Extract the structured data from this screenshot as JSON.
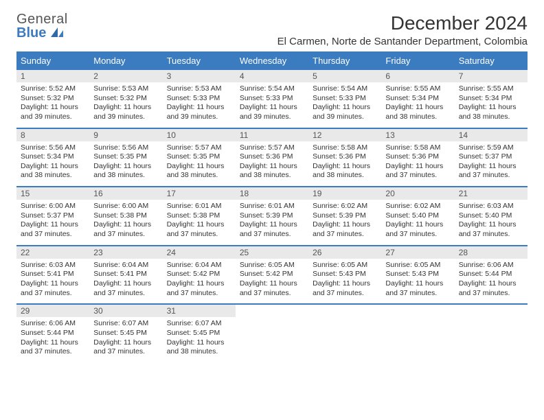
{
  "logo": {
    "word1": "General",
    "word2": "Blue"
  },
  "title": "December 2024",
  "location": "El Carmen, Norte de Santander Department, Colombia",
  "colors": {
    "header_bg": "#3b7bbf",
    "header_text": "#ffffff",
    "daynum_bg": "#e9e9e9",
    "border": "#3b7bbf",
    "body_text": "#333333",
    "logo_gray": "#555555",
    "logo_blue": "#3b7bbf"
  },
  "weekdays": [
    "Sunday",
    "Monday",
    "Tuesday",
    "Wednesday",
    "Thursday",
    "Friday",
    "Saturday"
  ],
  "weeks": [
    [
      {
        "n": "1",
        "sr": "Sunrise: 5:52 AM",
        "ss": "Sunset: 5:32 PM",
        "dl": "Daylight: 11 hours and 39 minutes."
      },
      {
        "n": "2",
        "sr": "Sunrise: 5:53 AM",
        "ss": "Sunset: 5:32 PM",
        "dl": "Daylight: 11 hours and 39 minutes."
      },
      {
        "n": "3",
        "sr": "Sunrise: 5:53 AM",
        "ss": "Sunset: 5:33 PM",
        "dl": "Daylight: 11 hours and 39 minutes."
      },
      {
        "n": "4",
        "sr": "Sunrise: 5:54 AM",
        "ss": "Sunset: 5:33 PM",
        "dl": "Daylight: 11 hours and 39 minutes."
      },
      {
        "n": "5",
        "sr": "Sunrise: 5:54 AM",
        "ss": "Sunset: 5:33 PM",
        "dl": "Daylight: 11 hours and 39 minutes."
      },
      {
        "n": "6",
        "sr": "Sunrise: 5:55 AM",
        "ss": "Sunset: 5:34 PM",
        "dl": "Daylight: 11 hours and 38 minutes."
      },
      {
        "n": "7",
        "sr": "Sunrise: 5:55 AM",
        "ss": "Sunset: 5:34 PM",
        "dl": "Daylight: 11 hours and 38 minutes."
      }
    ],
    [
      {
        "n": "8",
        "sr": "Sunrise: 5:56 AM",
        "ss": "Sunset: 5:34 PM",
        "dl": "Daylight: 11 hours and 38 minutes."
      },
      {
        "n": "9",
        "sr": "Sunrise: 5:56 AM",
        "ss": "Sunset: 5:35 PM",
        "dl": "Daylight: 11 hours and 38 minutes."
      },
      {
        "n": "10",
        "sr": "Sunrise: 5:57 AM",
        "ss": "Sunset: 5:35 PM",
        "dl": "Daylight: 11 hours and 38 minutes."
      },
      {
        "n": "11",
        "sr": "Sunrise: 5:57 AM",
        "ss": "Sunset: 5:36 PM",
        "dl": "Daylight: 11 hours and 38 minutes."
      },
      {
        "n": "12",
        "sr": "Sunrise: 5:58 AM",
        "ss": "Sunset: 5:36 PM",
        "dl": "Daylight: 11 hours and 38 minutes."
      },
      {
        "n": "13",
        "sr": "Sunrise: 5:58 AM",
        "ss": "Sunset: 5:36 PM",
        "dl": "Daylight: 11 hours and 37 minutes."
      },
      {
        "n": "14",
        "sr": "Sunrise: 5:59 AM",
        "ss": "Sunset: 5:37 PM",
        "dl": "Daylight: 11 hours and 37 minutes."
      }
    ],
    [
      {
        "n": "15",
        "sr": "Sunrise: 6:00 AM",
        "ss": "Sunset: 5:37 PM",
        "dl": "Daylight: 11 hours and 37 minutes."
      },
      {
        "n": "16",
        "sr": "Sunrise: 6:00 AM",
        "ss": "Sunset: 5:38 PM",
        "dl": "Daylight: 11 hours and 37 minutes."
      },
      {
        "n": "17",
        "sr": "Sunrise: 6:01 AM",
        "ss": "Sunset: 5:38 PM",
        "dl": "Daylight: 11 hours and 37 minutes."
      },
      {
        "n": "18",
        "sr": "Sunrise: 6:01 AM",
        "ss": "Sunset: 5:39 PM",
        "dl": "Daylight: 11 hours and 37 minutes."
      },
      {
        "n": "19",
        "sr": "Sunrise: 6:02 AM",
        "ss": "Sunset: 5:39 PM",
        "dl": "Daylight: 11 hours and 37 minutes."
      },
      {
        "n": "20",
        "sr": "Sunrise: 6:02 AM",
        "ss": "Sunset: 5:40 PM",
        "dl": "Daylight: 11 hours and 37 minutes."
      },
      {
        "n": "21",
        "sr": "Sunrise: 6:03 AM",
        "ss": "Sunset: 5:40 PM",
        "dl": "Daylight: 11 hours and 37 minutes."
      }
    ],
    [
      {
        "n": "22",
        "sr": "Sunrise: 6:03 AM",
        "ss": "Sunset: 5:41 PM",
        "dl": "Daylight: 11 hours and 37 minutes."
      },
      {
        "n": "23",
        "sr": "Sunrise: 6:04 AM",
        "ss": "Sunset: 5:41 PM",
        "dl": "Daylight: 11 hours and 37 minutes."
      },
      {
        "n": "24",
        "sr": "Sunrise: 6:04 AM",
        "ss": "Sunset: 5:42 PM",
        "dl": "Daylight: 11 hours and 37 minutes."
      },
      {
        "n": "25",
        "sr": "Sunrise: 6:05 AM",
        "ss": "Sunset: 5:42 PM",
        "dl": "Daylight: 11 hours and 37 minutes."
      },
      {
        "n": "26",
        "sr": "Sunrise: 6:05 AM",
        "ss": "Sunset: 5:43 PM",
        "dl": "Daylight: 11 hours and 37 minutes."
      },
      {
        "n": "27",
        "sr": "Sunrise: 6:05 AM",
        "ss": "Sunset: 5:43 PM",
        "dl": "Daylight: 11 hours and 37 minutes."
      },
      {
        "n": "28",
        "sr": "Sunrise: 6:06 AM",
        "ss": "Sunset: 5:44 PM",
        "dl": "Daylight: 11 hours and 37 minutes."
      }
    ],
    [
      {
        "n": "29",
        "sr": "Sunrise: 6:06 AM",
        "ss": "Sunset: 5:44 PM",
        "dl": "Daylight: 11 hours and 37 minutes."
      },
      {
        "n": "30",
        "sr": "Sunrise: 6:07 AM",
        "ss": "Sunset: 5:45 PM",
        "dl": "Daylight: 11 hours and 37 minutes."
      },
      {
        "n": "31",
        "sr": "Sunrise: 6:07 AM",
        "ss": "Sunset: 5:45 PM",
        "dl": "Daylight: 11 hours and 38 minutes."
      },
      null,
      null,
      null,
      null
    ]
  ]
}
